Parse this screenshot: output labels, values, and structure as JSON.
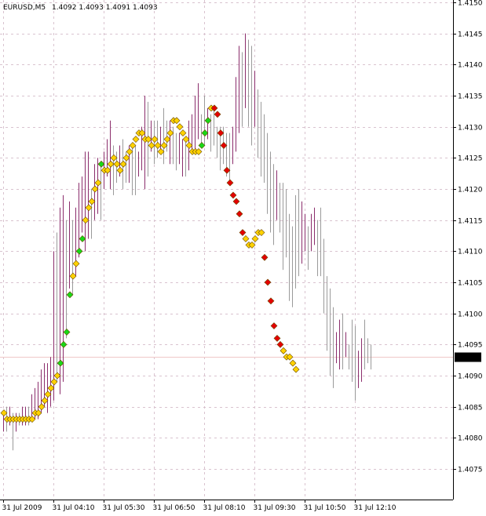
{
  "header": {
    "symbol": "EURUSD,M5",
    "ohlc": "1.4092 1.4093 1.4091 1.4093"
  },
  "price_marker": "1.4093",
  "colors": {
    "background": "#ffffff",
    "axis": "#000000",
    "grid": "#d9c3cf",
    "bar_up": "#8b2d6c",
    "bar_down": "#9a9a9a",
    "dot_neutral": "#ffd200",
    "dot_up": "#18d818",
    "dot_down": "#e40000",
    "dot_outline": "#6a4a00",
    "price_marker_bg": "#000000",
    "price_marker_text": "#ffffff",
    "current_price_line": "#f0c8c8"
  },
  "chart_data": {
    "type": "candlestick-bars",
    "symbol": "EURUSD",
    "timeframe": "M5",
    "ylim": [
      1.4072,
      1.415
    ],
    "y_ticks": [
      "1.4150",
      "1.4145",
      "1.4140",
      "1.4135",
      "1.4130",
      "1.4125",
      "1.4120",
      "1.4115",
      "1.4110",
      "1.4105",
      "1.4100",
      "1.4095",
      "1.4090",
      "1.4085",
      "1.4080",
      "1.4075"
    ],
    "x_ticks": [
      {
        "label": "31 Jul 2009",
        "index": 0
      },
      {
        "label": "31 Jul 04:10",
        "index": 16
      },
      {
        "label": "31 Jul 05:30",
        "index": 32
      },
      {
        "label": "31 Jul 06:50",
        "index": 48
      },
      {
        "label": "31 Jul 08:10",
        "index": 64
      },
      {
        "label": "31 Jul 09:30",
        "index": 80
      },
      {
        "label": "31 Jul 10:50",
        "index": 96
      },
      {
        "label": "31 Jul 12:10",
        "index": 112
      }
    ],
    "grid": true,
    "current_price": 1.4093,
    "bars": [
      {
        "h": 1.4084,
        "l": 1.4081,
        "d": "u"
      },
      {
        "h": 1.4085,
        "l": 1.4081,
        "d": "d"
      },
      {
        "h": 1.4085,
        "l": 1.4082,
        "d": "u"
      },
      {
        "h": 1.4084,
        "l": 1.4078,
        "d": "d"
      },
      {
        "h": 1.4084,
        "l": 1.4081,
        "d": "u"
      },
      {
        "h": 1.4084,
        "l": 1.4082,
        "d": "d"
      },
      {
        "h": 1.4085,
        "l": 1.4082,
        "d": "u"
      },
      {
        "h": 1.4085,
        "l": 1.4082,
        "d": "u"
      },
      {
        "h": 1.4085,
        "l": 1.4082,
        "d": "d"
      },
      {
        "h": 1.4087,
        "l": 1.4083,
        "d": "u"
      },
      {
        "h": 1.4088,
        "l": 1.4083,
        "d": "u"
      },
      {
        "h": 1.4089,
        "l": 1.4083,
        "d": "u"
      },
      {
        "h": 1.4091,
        "l": 1.4084,
        "d": "u"
      },
      {
        "h": 1.4092,
        "l": 1.4085,
        "d": "u"
      },
      {
        "h": 1.4092,
        "l": 1.4084,
        "d": "u"
      },
      {
        "h": 1.4093,
        "l": 1.4085,
        "d": "u"
      },
      {
        "h": 1.411,
        "l": 1.4086,
        "d": "u"
      },
      {
        "h": 1.4113,
        "l": 1.4089,
        "d": "d"
      },
      {
        "h": 1.4117,
        "l": 1.4087,
        "d": "u"
      },
      {
        "h": 1.4119,
        "l": 1.4089,
        "d": "u"
      },
      {
        "h": 1.4115,
        "l": 1.4096,
        "d": "d"
      },
      {
        "h": 1.4118,
        "l": 1.4104,
        "d": "u"
      },
      {
        "h": 1.4115,
        "l": 1.4103,
        "d": "d"
      },
      {
        "h": 1.4117,
        "l": 1.4106,
        "d": "u"
      },
      {
        "h": 1.4121,
        "l": 1.4109,
        "d": "u"
      },
      {
        "h": 1.4122,
        "l": 1.4113,
        "d": "u"
      },
      {
        "h": 1.4126,
        "l": 1.411,
        "d": "u"
      },
      {
        "h": 1.4126,
        "l": 1.4112,
        "d": "u"
      },
      {
        "h": 1.412,
        "l": 1.4112,
        "d": "d"
      },
      {
        "h": 1.4124,
        "l": 1.4115,
        "d": "u"
      },
      {
        "h": 1.4125,
        "l": 1.4116,
        "d": "u"
      },
      {
        "h": 1.4124,
        "l": 1.4115,
        "d": "d"
      },
      {
        "h": 1.4126,
        "l": 1.412,
        "d": "u"
      },
      {
        "h": 1.4128,
        "l": 1.4122,
        "d": "u"
      },
      {
        "h": 1.4131,
        "l": 1.412,
        "d": "u"
      },
      {
        "h": 1.4127,
        "l": 1.4119,
        "d": "d"
      },
      {
        "h": 1.4126,
        "l": 1.4121,
        "d": "d"
      },
      {
        "h": 1.4127,
        "l": 1.4122,
        "d": "u"
      },
      {
        "h": 1.4128,
        "l": 1.412,
        "d": "d"
      },
      {
        "h": 1.4126,
        "l": 1.4121,
        "d": "d"
      },
      {
        "h": 1.4127,
        "l": 1.4121,
        "d": "u"
      },
      {
        "h": 1.4127,
        "l": 1.4119,
        "d": "d"
      },
      {
        "h": 1.4127,
        "l": 1.4119,
        "d": "d"
      },
      {
        "h": 1.4126,
        "l": 1.4122,
        "d": "u"
      },
      {
        "h": 1.413,
        "l": 1.4123,
        "d": "u"
      },
      {
        "h": 1.4135,
        "l": 1.412,
        "d": "u"
      },
      {
        "h": 1.4134,
        "l": 1.4122,
        "d": "d"
      },
      {
        "h": 1.4131,
        "l": 1.4126,
        "d": "u"
      },
      {
        "h": 1.4131,
        "l": 1.4124,
        "d": "d"
      },
      {
        "h": 1.4131,
        "l": 1.4125,
        "d": "d"
      },
      {
        "h": 1.413,
        "l": 1.4126,
        "d": "u"
      },
      {
        "h": 1.4133,
        "l": 1.4124,
        "d": "d"
      },
      {
        "h": 1.4131,
        "l": 1.4126,
        "d": "d"
      },
      {
        "h": 1.4131,
        "l": 1.4124,
        "d": "u"
      },
      {
        "h": 1.413,
        "l": 1.4124,
        "d": "d"
      },
      {
        "h": 1.4129,
        "l": 1.4123,
        "d": "d"
      },
      {
        "h": 1.4129,
        "l": 1.4124,
        "d": "u"
      },
      {
        "h": 1.4128,
        "l": 1.4122,
        "d": "u"
      },
      {
        "h": 1.4128,
        "l": 1.4122,
        "d": "d"
      },
      {
        "h": 1.4131,
        "l": 1.4123,
        "d": "u"
      },
      {
        "h": 1.4132,
        "l": 1.4126,
        "d": "u"
      },
      {
        "h": 1.4135,
        "l": 1.4126,
        "d": "u"
      },
      {
        "h": 1.4137,
        "l": 1.4128,
        "d": "u"
      },
      {
        "h": 1.4132,
        "l": 1.4127,
        "d": "d"
      },
      {
        "h": 1.4135,
        "l": 1.4127,
        "d": "d"
      },
      {
        "h": 1.4133,
        "l": 1.4128,
        "d": "u"
      },
      {
        "h": 1.4132,
        "l": 1.4126,
        "d": "d"
      },
      {
        "h": 1.4133,
        "l": 1.4127,
        "d": "d"
      },
      {
        "h": 1.413,
        "l": 1.4125,
        "d": "d"
      },
      {
        "h": 1.413,
        "l": 1.4123,
        "d": "d"
      },
      {
        "h": 1.413,
        "l": 1.4124,
        "d": "d"
      },
      {
        "h": 1.4129,
        "l": 1.4122,
        "d": "d"
      },
      {
        "h": 1.4129,
        "l": 1.4121,
        "d": "d"
      },
      {
        "h": 1.413,
        "l": 1.4124,
        "d": "u"
      },
      {
        "h": 1.4138,
        "l": 1.4126,
        "d": "u"
      },
      {
        "h": 1.4143,
        "l": 1.4129,
        "d": "u"
      },
      {
        "h": 1.4142,
        "l": 1.413,
        "d": "d"
      },
      {
        "h": 1.4145,
        "l": 1.4133,
        "d": "u"
      },
      {
        "h": 1.4144,
        "l": 1.413,
        "d": "d"
      },
      {
        "h": 1.4143,
        "l": 1.4127,
        "d": "d"
      },
      {
        "h": 1.4139,
        "l": 1.413,
        "d": "u"
      },
      {
        "h": 1.4136,
        "l": 1.4125,
        "d": "d"
      },
      {
        "h": 1.4134,
        "l": 1.4122,
        "d": "d"
      },
      {
        "h": 1.4132,
        "l": 1.4121,
        "d": "d"
      },
      {
        "h": 1.4129,
        "l": 1.4116,
        "d": "d"
      },
      {
        "h": 1.4126,
        "l": 1.4113,
        "d": "d"
      },
      {
        "h": 1.4124,
        "l": 1.4111,
        "d": "d"
      },
      {
        "h": 1.4123,
        "l": 1.4115,
        "d": "u"
      },
      {
        "h": 1.4121,
        "l": 1.4113,
        "d": "d"
      },
      {
        "h": 1.4121,
        "l": 1.4107,
        "d": "d"
      },
      {
        "h": 1.412,
        "l": 1.4109,
        "d": "d"
      },
      {
        "h": 1.4116,
        "l": 1.4102,
        "d": "d"
      },
      {
        "h": 1.4114,
        "l": 1.4101,
        "d": "d"
      },
      {
        "h": 1.4119,
        "l": 1.4104,
        "d": "d"
      },
      {
        "h": 1.412,
        "l": 1.4106,
        "d": "d"
      },
      {
        "h": 1.4118,
        "l": 1.4108,
        "d": "u"
      },
      {
        "h": 1.4116,
        "l": 1.411,
        "d": "u"
      },
      {
        "h": 1.4114,
        "l": 1.4107,
        "d": "d"
      },
      {
        "h": 1.4116,
        "l": 1.411,
        "d": "u"
      },
      {
        "h": 1.4117,
        "l": 1.4111,
        "d": "u"
      },
      {
        "h": 1.4115,
        "l": 1.4106,
        "d": "d"
      },
      {
        "h": 1.4117,
        "l": 1.4106,
        "d": "d"
      },
      {
        "h": 1.4112,
        "l": 1.41,
        "d": "d"
      },
      {
        "h": 1.4106,
        "l": 1.4094,
        "d": "d"
      },
      {
        "h": 1.4104,
        "l": 1.409,
        "d": "d"
      },
      {
        "h": 1.4101,
        "l": 1.4088,
        "d": "d"
      },
      {
        "h": 1.4097,
        "l": 1.4092,
        "d": "u"
      },
      {
        "h": 1.4099,
        "l": 1.4091,
        "d": "u"
      },
      {
        "h": 1.41,
        "l": 1.4091,
        "d": "d"
      },
      {
        "h": 1.4097,
        "l": 1.4093,
        "d": "u"
      },
      {
        "h": 1.4095,
        "l": 1.4091,
        "d": "d"
      },
      {
        "h": 1.4099,
        "l": 1.4089,
        "d": "d"
      },
      {
        "h": 1.4098,
        "l": 1.4086,
        "d": "d"
      },
      {
        "h": 1.4094,
        "l": 1.4088,
        "d": "u"
      },
      {
        "h": 1.4096,
        "l": 1.4089,
        "d": "u"
      },
      {
        "h": 1.4099,
        "l": 1.4091,
        "d": "d"
      },
      {
        "h": 1.4096,
        "l": 1.4092,
        "d": "d"
      },
      {
        "h": 1.4095,
        "l": 1.4091,
        "d": "d"
      }
    ],
    "indicator": [
      {
        "v": 1.4084,
        "c": "y"
      },
      {
        "v": 1.4083,
        "c": "y"
      },
      {
        "v": 1.4083,
        "c": "y"
      },
      {
        "v": 1.4083,
        "c": "y"
      },
      {
        "v": 1.4083,
        "c": "y"
      },
      {
        "v": 1.4083,
        "c": "y"
      },
      {
        "v": 1.4083,
        "c": "y"
      },
      {
        "v": 1.4083,
        "c": "y"
      },
      {
        "v": 1.4083,
        "c": "y"
      },
      {
        "v": 1.4083,
        "c": "y"
      },
      {
        "v": 1.4084,
        "c": "y"
      },
      {
        "v": 1.4084,
        "c": "y"
      },
      {
        "v": 1.4085,
        "c": "y"
      },
      {
        "v": 1.4086,
        "c": "y"
      },
      {
        "v": 1.4087,
        "c": "y"
      },
      {
        "v": 1.4088,
        "c": "y"
      },
      {
        "v": 1.4089,
        "c": "y"
      },
      {
        "v": 1.409,
        "c": "y"
      },
      {
        "v": 1.4092,
        "c": "g"
      },
      {
        "v": 1.4095,
        "c": "g"
      },
      {
        "v": 1.4097,
        "c": "g"
      },
      {
        "v": 1.4103,
        "c": "g"
      },
      {
        "v": 1.4106,
        "c": "y"
      },
      {
        "v": 1.4108,
        "c": "y"
      },
      {
        "v": 1.411,
        "c": "g"
      },
      {
        "v": 1.4112,
        "c": "g"
      },
      {
        "v": 1.4115,
        "c": "y"
      },
      {
        "v": 1.4117,
        "c": "y"
      },
      {
        "v": 1.4118,
        "c": "y"
      },
      {
        "v": 1.412,
        "c": "y"
      },
      {
        "v": 1.4121,
        "c": "y"
      },
      {
        "v": 1.4124,
        "c": "g"
      },
      {
        "v": 1.4123,
        "c": "y"
      },
      {
        "v": 1.4123,
        "c": "y"
      },
      {
        "v": 1.4124,
        "c": "y"
      },
      {
        "v": 1.4125,
        "c": "y"
      },
      {
        "v": 1.4124,
        "c": "y"
      },
      {
        "v": 1.4123,
        "c": "y"
      },
      {
        "v": 1.4124,
        "c": "y"
      },
      {
        "v": 1.4125,
        "c": "y"
      },
      {
        "v": 1.4126,
        "c": "y"
      },
      {
        "v": 1.4127,
        "c": "y"
      },
      {
        "v": 1.4128,
        "c": "y"
      },
      {
        "v": 1.4129,
        "c": "y"
      },
      {
        "v": 1.4129,
        "c": "y"
      },
      {
        "v": 1.4128,
        "c": "y"
      },
      {
        "v": 1.4128,
        "c": "y"
      },
      {
        "v": 1.4127,
        "c": "y"
      },
      {
        "v": 1.4128,
        "c": "y"
      },
      {
        "v": 1.4127,
        "c": "y"
      },
      {
        "v": 1.4126,
        "c": "y"
      },
      {
        "v": 1.4127,
        "c": "y"
      },
      {
        "v": 1.4128,
        "c": "y"
      },
      {
        "v": 1.4129,
        "c": "y"
      },
      {
        "v": 1.4131,
        "c": "y"
      },
      {
        "v": 1.4131,
        "c": "y"
      },
      {
        "v": 1.413,
        "c": "y"
      },
      {
        "v": 1.4129,
        "c": "y"
      },
      {
        "v": 1.4128,
        "c": "y"
      },
      {
        "v": 1.4127,
        "c": "y"
      },
      {
        "v": 1.4126,
        "c": "y"
      },
      {
        "v": 1.4126,
        "c": "y"
      },
      {
        "v": 1.4126,
        "c": "y"
      },
      {
        "v": 1.4127,
        "c": "g"
      },
      {
        "v": 1.4129,
        "c": "g"
      },
      {
        "v": 1.4131,
        "c": "g"
      },
      {
        "v": 1.4133,
        "c": "y"
      },
      {
        "v": 1.4133,
        "c": "r"
      },
      {
        "v": 1.4132,
        "c": "r"
      },
      {
        "v": 1.4129,
        "c": "r"
      },
      {
        "v": 1.4127,
        "c": "r"
      },
      {
        "v": 1.4123,
        "c": "r"
      },
      {
        "v": 1.4121,
        "c": "r"
      },
      {
        "v": 1.4119,
        "c": "r"
      },
      {
        "v": 1.4118,
        "c": "r"
      },
      {
        "v": 1.4116,
        "c": "r"
      },
      {
        "v": 1.4113,
        "c": "r"
      },
      {
        "v": 1.4112,
        "c": "y"
      },
      {
        "v": 1.4111,
        "c": "y"
      },
      {
        "v": 1.4111,
        "c": "y"
      },
      {
        "v": 1.4112,
        "c": "y"
      },
      {
        "v": 1.4113,
        "c": "y"
      },
      {
        "v": 1.4113,
        "c": "y"
      },
      {
        "v": 1.4109,
        "c": "r"
      },
      {
        "v": 1.4105,
        "c": "r"
      },
      {
        "v": 1.4102,
        "c": "r"
      },
      {
        "v": 1.4098,
        "c": "r"
      },
      {
        "v": 1.4096,
        "c": "r"
      },
      {
        "v": 1.4095,
        "c": "r"
      },
      {
        "v": 1.4094,
        "c": "y"
      },
      {
        "v": 1.4093,
        "c": "y"
      },
      {
        "v": 1.4093,
        "c": "y"
      },
      {
        "v": 1.4092,
        "c": "y"
      },
      {
        "v": 1.4091,
        "c": "y"
      }
    ]
  }
}
